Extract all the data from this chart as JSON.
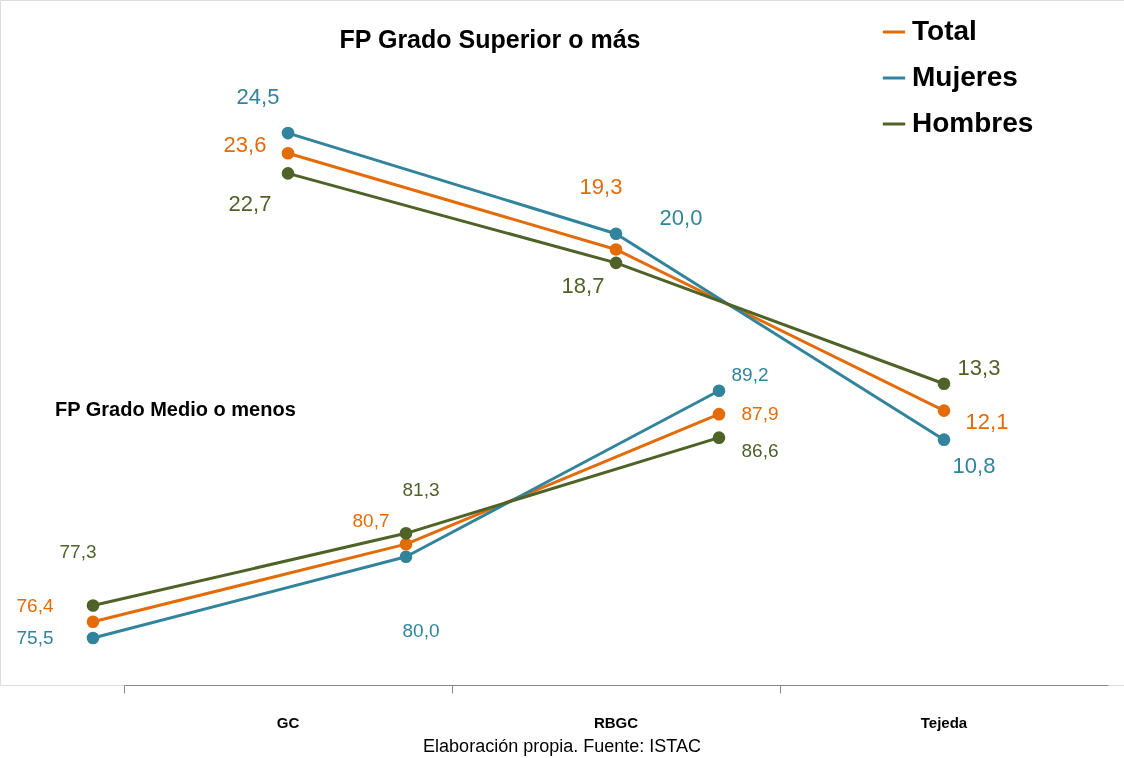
{
  "chart_data": [
    {
      "type": "line",
      "title": "FP Grado  Superior o más",
      "categories": [
        "GC",
        "RBGC",
        "Tejeda"
      ],
      "tick_labels": "x",
      "legend": "top right",
      "grid": false,
      "marker": "circle",
      "line_style": "solid",
      "series": [
        {
          "name": "Total",
          "color": "#e36c09",
          "values": [
            23.6,
            19.3,
            12.1
          ],
          "value_labels": [
            "23,6",
            "19,3",
            "12,1"
          ]
        },
        {
          "name": "Mujeres",
          "color": "#31849b",
          "values": [
            24.5,
            20.0,
            10.8
          ],
          "value_labels": [
            "24,5",
            "20,0",
            "10,8"
          ]
        },
        {
          "name": "Hombres",
          "color": "#4f6228",
          "values": [
            22.7,
            18.7,
            13.3
          ],
          "value_labels": [
            "22,7",
            "18,7",
            "13,3"
          ]
        }
      ],
      "annotations": [
        "Elaboración propia. Fuente: ISTAC"
      ]
    },
    {
      "type": "line",
      "title": "FP Grado Medio o menos",
      "categories": [
        null,
        null,
        null
      ],
      "tick_labels": false,
      "grid": false,
      "marker": "circle",
      "line_style": "solid",
      "series": [
        {
          "color": "#e36c09",
          "values": [
            76.4,
            80.7,
            87.9
          ],
          "value_labels": [
            "76,4",
            "80,7",
            "87,9"
          ]
        },
        {
          "color": "#31849b",
          "values": [
            75.5,
            80.0,
            89.2
          ],
          "value_labels": [
            "75,5",
            "80,0",
            "89,2"
          ]
        },
        {
          "color": "#4f6228",
          "values": [
            77.3,
            81.3,
            86.6
          ],
          "value_labels": [
            "77,3",
            "81,3",
            "86,6"
          ]
        }
      ]
    }
  ]
}
